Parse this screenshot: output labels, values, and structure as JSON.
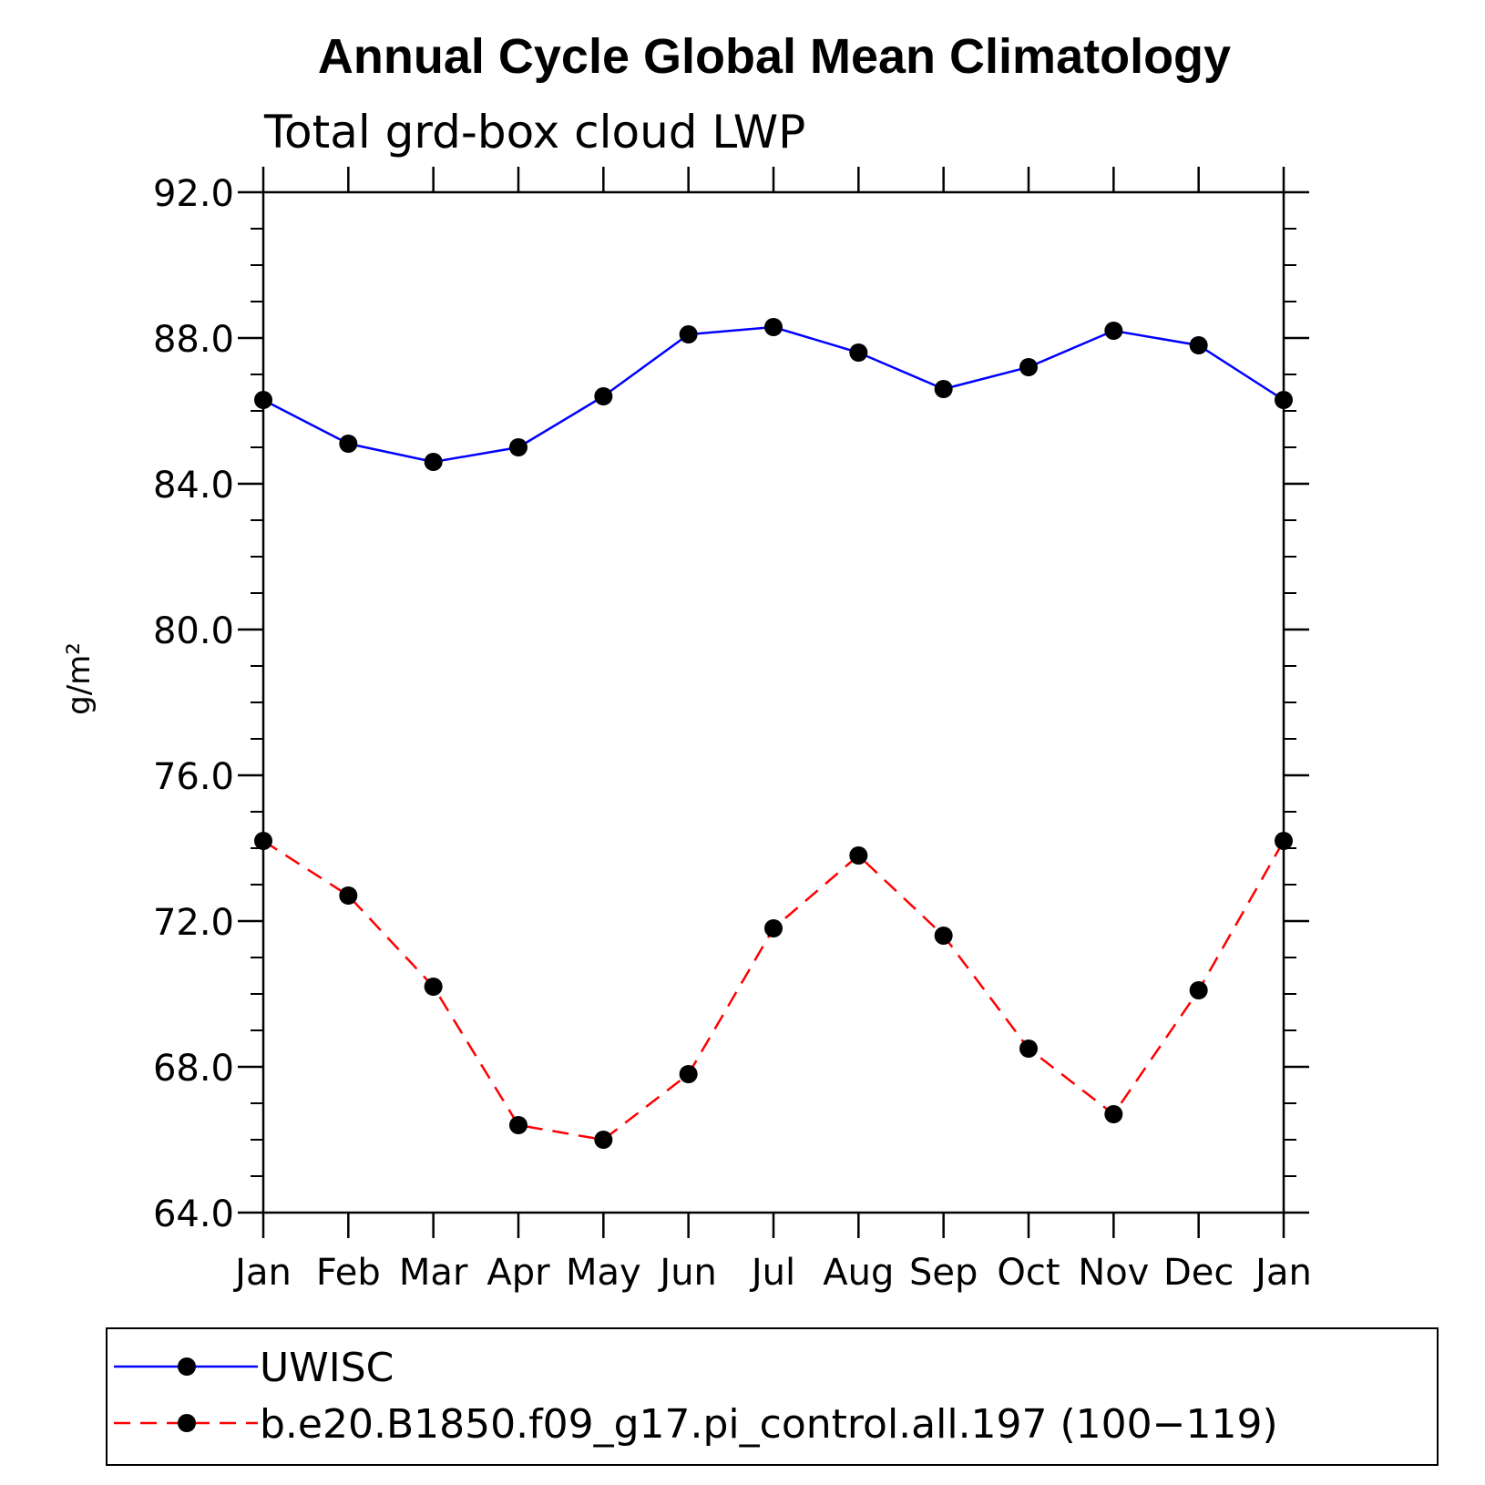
{
  "chart_data": {
    "type": "line",
    "title": "Annual Cycle Global Mean Climatology",
    "subtitle": "Total grd-box cloud LWP",
    "ylabel": "g/m²",
    "xlabel": "",
    "categories": [
      "Jan",
      "Feb",
      "Mar",
      "Apr",
      "May",
      "Jun",
      "Jul",
      "Aug",
      "Sep",
      "Oct",
      "Nov",
      "Dec",
      "Jan"
    ],
    "ylim": [
      64.0,
      92.0
    ],
    "yticks": [
      "64.0",
      "68.0",
      "72.0",
      "76.0",
      "80.0",
      "84.0",
      "88.0",
      "92.0"
    ],
    "ytick_values": [
      64,
      68,
      72,
      76,
      80,
      84,
      88,
      92
    ],
    "y_minor_step": 1,
    "grid": false,
    "legend_position": "bottom",
    "series": [
      {
        "name": "UWISC",
        "color": "#0000ff",
        "dashed": false,
        "values": [
          86.3,
          85.1,
          84.6,
          85.0,
          86.4,
          88.1,
          88.3,
          87.6,
          86.6,
          87.2,
          88.2,
          87.8,
          86.3
        ]
      },
      {
        "name": "b.e20.B1850.f09_g17.pi_control.all.197 (100−119)",
        "color": "#ff0000",
        "dashed": true,
        "values": [
          74.2,
          72.7,
          70.2,
          66.4,
          66.0,
          67.8,
          71.8,
          73.8,
          71.6,
          68.5,
          66.7,
          70.1,
          74.2
        ]
      }
    ],
    "marker_color": "#000000"
  }
}
